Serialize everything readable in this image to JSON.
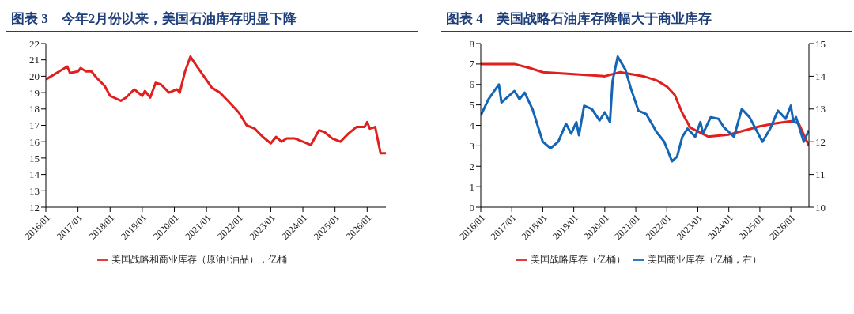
{
  "chart_data": [
    {
      "type": "line",
      "title": "图表 3　今年2月份以来，美国石油库存明显下降",
      "legend": "bottom",
      "xlim": [
        "2016-01",
        "2026-08"
      ],
      "ylim": [
        12,
        22
      ],
      "yticks": [
        12,
        13,
        14,
        15,
        16,
        17,
        18,
        19,
        20,
        21,
        22
      ],
      "xticks": [
        {
          "value": "2016-01",
          "label": "2016/01"
        },
        {
          "value": "2017-01",
          "label": "2017/01"
        },
        {
          "value": "2018-01",
          "label": "2018/01"
        },
        {
          "value": "2019-01",
          "label": "2019/01"
        },
        {
          "value": "2020-01",
          "label": "2020/01"
        },
        {
          "value": "2021-01",
          "label": "2021/01"
        },
        {
          "value": "2022-01",
          "label": "2022/01"
        },
        {
          "value": "2023-01",
          "label": "2023/01"
        },
        {
          "value": "2024-01",
          "label": "2024/01"
        },
        {
          "value": "2025-01",
          "label": "2025/01"
        },
        {
          "value": "2026-01",
          "label": "2026/01"
        }
      ],
      "x": [
        "2016-01",
        "2016-03",
        "2016-06",
        "2016-09",
        "2016-10",
        "2017-01",
        "2017-02",
        "2017-04",
        "2017-06",
        "2017-08",
        "2017-11",
        "2018-01",
        "2018-05",
        "2018-07",
        "2018-10",
        "2019-01",
        "2019-02",
        "2019-04",
        "2019-06",
        "2019-08",
        "2019-11",
        "2020-02",
        "2020-03",
        "2020-05",
        "2020-07",
        "2020-09",
        "2020-12",
        "2021-03",
        "2021-06",
        "2021-09",
        "2022-01",
        "2022-04",
        "2022-07",
        "2022-10",
        "2023-01",
        "2023-03",
        "2023-05",
        "2023-07",
        "2023-10",
        "2024-01",
        "2024-04",
        "2024-07",
        "2024-09",
        "2024-12",
        "2025-03",
        "2025-06",
        "2025-09",
        "2025-12",
        "2026-01",
        "2026-02",
        "2026-04",
        "2026-06",
        "2026-08"
      ],
      "series": [
        {
          "name": "美国战略和商业库存（原油+油品），亿桶",
          "color": "#e0201e",
          "values": [
            19.8,
            20.0,
            20.3,
            20.6,
            20.2,
            20.3,
            20.5,
            20.3,
            20.3,
            19.9,
            19.4,
            18.8,
            18.5,
            18.7,
            19.2,
            18.8,
            19.1,
            18.7,
            19.6,
            19.5,
            19.0,
            19.2,
            19.0,
            20.3,
            21.2,
            20.7,
            20.0,
            19.3,
            19.0,
            18.5,
            17.8,
            17.0,
            16.8,
            16.3,
            15.9,
            16.3,
            16.0,
            16.2,
            16.2,
            16.0,
            15.8,
            16.7,
            16.6,
            16.2,
            16.0,
            16.5,
            16.9,
            16.9,
            17.2,
            16.8,
            16.9,
            15.3,
            15.3
          ]
        }
      ]
    },
    {
      "type": "line",
      "title": "图表 4　美国战略石油库存降幅大于商业库存",
      "legend": "bottom",
      "xlim": [
        "2016-01",
        "2026-08"
      ],
      "ylim": [
        0,
        8
      ],
      "yticks": [
        0,
        1,
        2,
        3,
        4,
        5,
        6,
        7,
        8
      ],
      "y2lim": [
        10,
        15
      ],
      "y2ticks": [
        10,
        11,
        12,
        13,
        14,
        15
      ],
      "xticks": [
        {
          "value": "2016-01",
          "label": "2016/01"
        },
        {
          "value": "2017-01",
          "label": "2017/01"
        },
        {
          "value": "2018-01",
          "label": "2018/01"
        },
        {
          "value": "2019-01",
          "label": "2019/01"
        },
        {
          "value": "2020-01",
          "label": "2020/01"
        },
        {
          "value": "2021-01",
          "label": "2021/01"
        },
        {
          "value": "2022-01",
          "label": "2022/01"
        },
        {
          "value": "2023-01",
          "label": "2023/01"
        },
        {
          "value": "2024-01",
          "label": "2024/01"
        },
        {
          "value": "2025-01",
          "label": "2025/01"
        },
        {
          "value": "2026-01",
          "label": "2026/01"
        }
      ],
      "series": [
        {
          "name": "美国战略库存（亿桶）",
          "color": "#e0201e",
          "x": [
            "2016-01",
            "2017-02",
            "2017-08",
            "2018-01",
            "2019-01",
            "2020-01",
            "2020-07",
            "2021-04",
            "2021-09",
            "2022-01",
            "2022-04",
            "2022-07",
            "2022-10",
            "2023-01",
            "2023-05",
            "2024-01",
            "2024-07",
            "2025-01",
            "2025-07",
            "2026-01",
            "2026-04",
            "2026-08"
          ],
          "values": [
            7.0,
            7.0,
            6.8,
            6.6,
            6.5,
            6.4,
            6.6,
            6.4,
            6.2,
            5.9,
            5.5,
            4.6,
            3.9,
            3.7,
            3.45,
            3.55,
            3.75,
            3.95,
            4.1,
            4.2,
            4.1,
            3.0
          ]
        },
        {
          "name": "美国商业库存（亿桶，右）",
          "color": "#1565b5",
          "axis": "y2",
          "x": [
            "2016-01",
            "2016-04",
            "2016-08",
            "2016-09",
            "2017-02",
            "2017-04",
            "2017-06",
            "2017-09",
            "2018-01",
            "2018-04",
            "2018-07",
            "2018-10",
            "2018-12",
            "2019-02",
            "2019-03",
            "2019-05",
            "2019-08",
            "2019-11",
            "2020-01",
            "2020-03",
            "2020-04",
            "2020-06",
            "2020-09",
            "2020-11",
            "2021-02",
            "2021-05",
            "2021-09",
            "2021-12",
            "2022-03",
            "2022-05",
            "2022-07",
            "2022-09",
            "2022-12",
            "2023-02",
            "2023-03",
            "2023-06",
            "2023-09",
            "2023-11",
            "2024-03",
            "2024-06",
            "2024-09",
            "2024-12",
            "2025-02",
            "2025-05",
            "2025-08",
            "2025-11",
            "2026-01",
            "2026-02",
            "2026-03",
            "2026-06",
            "2026-08"
          ],
          "values": [
            12.8,
            13.3,
            13.75,
            13.2,
            13.55,
            13.3,
            13.5,
            13.0,
            12.0,
            11.8,
            12.0,
            12.55,
            12.25,
            12.6,
            12.2,
            13.1,
            13.0,
            12.65,
            12.9,
            12.6,
            13.85,
            14.6,
            14.2,
            13.65,
            12.95,
            12.85,
            12.3,
            12.0,
            11.4,
            11.55,
            12.15,
            12.4,
            12.15,
            12.6,
            12.25,
            12.75,
            12.7,
            12.45,
            12.15,
            13.0,
            12.75,
            12.3,
            12.0,
            12.4,
            12.95,
            12.7,
            13.1,
            12.6,
            12.75,
            12.0,
            12.35
          ]
        }
      ]
    }
  ]
}
